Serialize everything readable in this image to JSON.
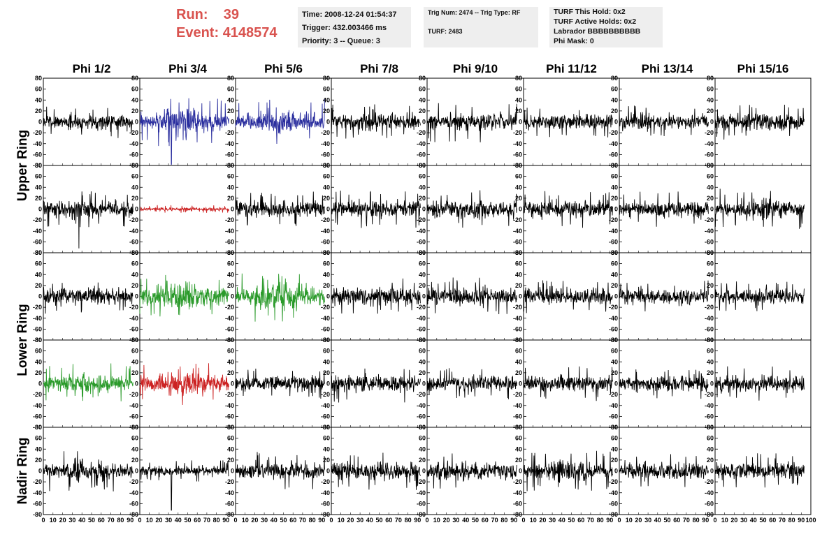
{
  "header": {
    "run_label": "Run:",
    "run_value": "39",
    "event_label": "Event:",
    "event_value": "4148574"
  },
  "time_box": {
    "time": "Time: 2008-12-24 01:54:37",
    "trigger": "Trigger: 432.003466 ms",
    "priority": "Priority: 3 -- Queue: 3"
  },
  "trig_box": {
    "trig": "Trig Num: 2474 -- Trig Type: RF",
    "turf": "TURF: 2483"
  },
  "turf_box": {
    "hold": "TURF This Hold: 0x2",
    "active": "TURF Active Holds: 0x2",
    "labrador": "Labrador BBBBBBBBBB",
    "phi_mask": "Phi Mask: 0"
  },
  "chart_data": {
    "type": "line",
    "column_labels": [
      "Phi 1/2",
      "Phi 3/4",
      "Phi 5/6",
      "Phi 7/8",
      "Phi 9/10",
      "Phi 11/12",
      "Phi 13/14",
      "Phi 15/16"
    ],
    "ring_labels": [
      "Upper Ring",
      "Lower Ring",
      "Nadir Ring"
    ],
    "rows_per_ring": [
      2,
      2,
      1
    ],
    "xlim": [
      0,
      100
    ],
    "x_ticks": [
      0,
      10,
      20,
      30,
      40,
      50,
      60,
      70,
      80,
      90,
      100
    ],
    "x_ticks_last_panel": [
      0,
      10,
      20,
      30,
      40,
      50,
      60,
      70,
      80,
      90,
      100
    ],
    "ylim": [
      -80,
      80
    ],
    "y_ticks": [
      -80,
      -60,
      -40,
      -20,
      0,
      20,
      40,
      60,
      80
    ],
    "sample_range": [
      0,
      93
    ],
    "colors": {
      "default": "#000000",
      "blue": "#2a2e9e",
      "red": "#cc2222",
      "green": "#2a9a2a"
    },
    "panels": [
      {
        "row": 0,
        "col": 0,
        "color": "#000000",
        "amp": 12
      },
      {
        "row": 0,
        "col": 1,
        "color": "#2a2e9e",
        "amp": 18,
        "peak": 45,
        "spike": {
          "x": 33,
          "y": -78
        }
      },
      {
        "row": 0,
        "col": 2,
        "color": "#2a2e9e",
        "amp": 16,
        "peak": 42
      },
      {
        "row": 0,
        "col": 3,
        "color": "#000000",
        "amp": 13
      },
      {
        "row": 0,
        "col": 4,
        "color": "#000000",
        "amp": 13,
        "peak": 38
      },
      {
        "row": 0,
        "col": 5,
        "color": "#000000",
        "amp": 12
      },
      {
        "row": 0,
        "col": 6,
        "color": "#000000",
        "amp": 12
      },
      {
        "row": 0,
        "col": 7,
        "color": "#000000",
        "amp": 13
      },
      {
        "row": 1,
        "col": 0,
        "color": "#000000",
        "amp": 14,
        "spike": {
          "x": 37,
          "y": -72
        }
      },
      {
        "row": 1,
        "col": 1,
        "color": "#cc2222",
        "amp": 3
      },
      {
        "row": 1,
        "col": 2,
        "color": "#000000",
        "amp": 13
      },
      {
        "row": 1,
        "col": 3,
        "color": "#000000",
        "amp": 14
      },
      {
        "row": 1,
        "col": 4,
        "color": "#000000",
        "amp": 14
      },
      {
        "row": 1,
        "col": 5,
        "color": "#000000",
        "amp": 14
      },
      {
        "row": 1,
        "col": 6,
        "color": "#000000",
        "amp": 13
      },
      {
        "row": 1,
        "col": 7,
        "color": "#000000",
        "amp": 15
      },
      {
        "row": 2,
        "col": 0,
        "color": "#000000",
        "amp": 13
      },
      {
        "row": 2,
        "col": 1,
        "color": "#2a9a2a",
        "amp": 20,
        "peak": 40
      },
      {
        "row": 2,
        "col": 2,
        "color": "#2a9a2a",
        "amp": 20,
        "peak": 48
      },
      {
        "row": 2,
        "col": 3,
        "color": "#000000",
        "amp": 14
      },
      {
        "row": 2,
        "col": 4,
        "color": "#000000",
        "amp": 14
      },
      {
        "row": 2,
        "col": 5,
        "color": "#000000",
        "amp": 13
      },
      {
        "row": 2,
        "col": 6,
        "color": "#000000",
        "amp": 13
      },
      {
        "row": 2,
        "col": 7,
        "color": "#000000",
        "amp": 12
      },
      {
        "row": 3,
        "col": 0,
        "color": "#2a9a2a",
        "amp": 15
      },
      {
        "row": 3,
        "col": 1,
        "color": "#cc2222",
        "amp": 18,
        "peak": 40
      },
      {
        "row": 3,
        "col": 2,
        "color": "#000000",
        "amp": 12
      },
      {
        "row": 3,
        "col": 3,
        "color": "#000000",
        "amp": 14
      },
      {
        "row": 3,
        "col": 4,
        "color": "#000000",
        "amp": 12
      },
      {
        "row": 3,
        "col": 5,
        "color": "#000000",
        "amp": 13
      },
      {
        "row": 3,
        "col": 6,
        "color": "#000000",
        "amp": 12
      },
      {
        "row": 3,
        "col": 7,
        "color": "#000000",
        "amp": 13
      },
      {
        "row": 4,
        "col": 0,
        "color": "#000000",
        "amp": 15,
        "peak": 38
      },
      {
        "row": 4,
        "col": 1,
        "color": "#000000",
        "amp": 8,
        "spike": {
          "x": 33,
          "y": -72
        }
      },
      {
        "row": 4,
        "col": 2,
        "color": "#000000",
        "amp": 14
      },
      {
        "row": 4,
        "col": 3,
        "color": "#000000",
        "amp": 14
      },
      {
        "row": 4,
        "col": 4,
        "color": "#000000",
        "amp": 14
      },
      {
        "row": 4,
        "col": 5,
        "color": "#000000",
        "amp": 15
      },
      {
        "row": 4,
        "col": 6,
        "color": "#000000",
        "amp": 14
      },
      {
        "row": 4,
        "col": 7,
        "color": "#000000",
        "amp": 13
      }
    ]
  }
}
